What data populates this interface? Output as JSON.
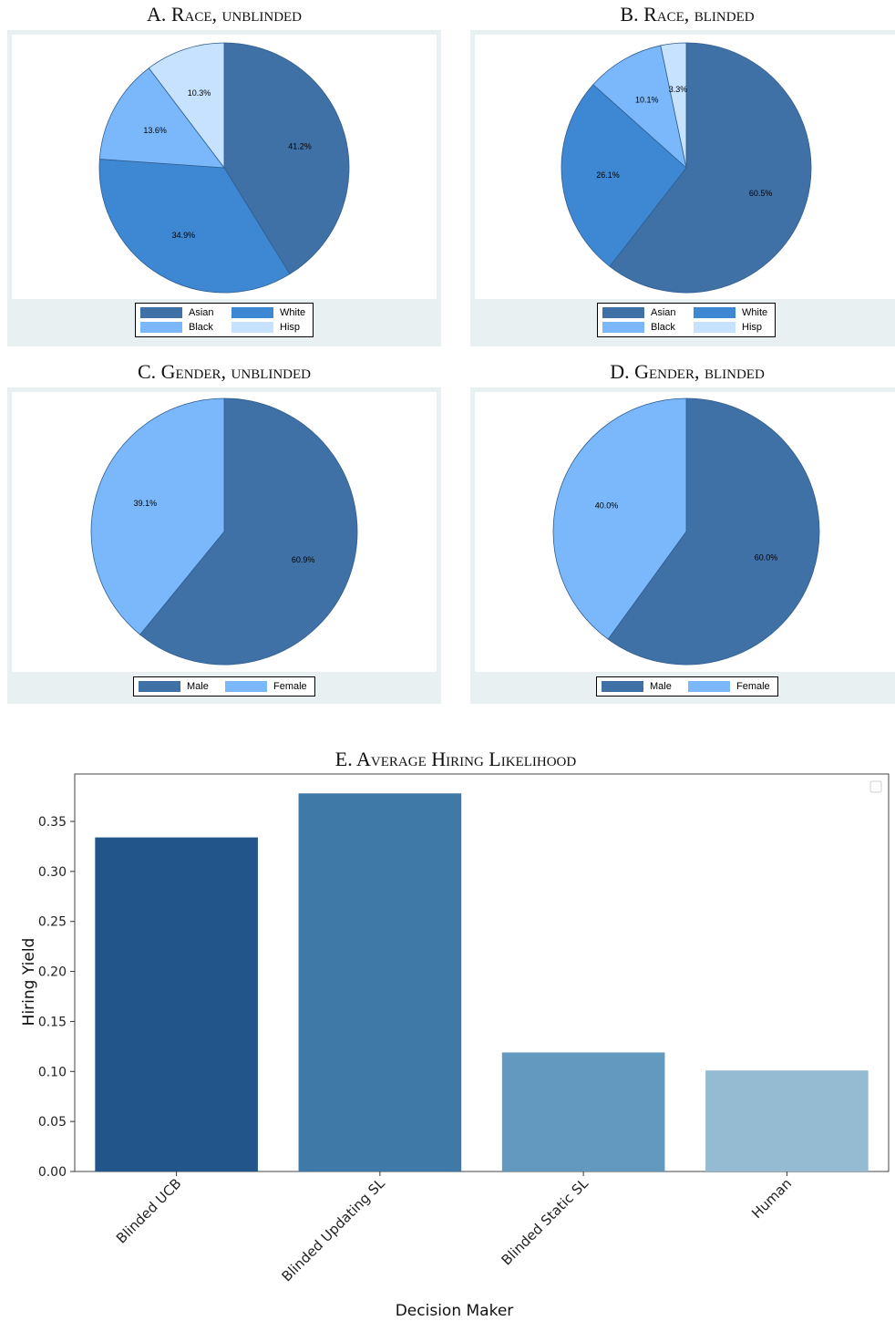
{
  "pies": [
    {
      "title": "A. Race, unblinded",
      "legend": [
        {
          "label": "Asian",
          "color": "#4071a6"
        },
        {
          "label": "White",
          "color": "#3e87d3"
        },
        {
          "label": "Black",
          "color": "#7ab8fb"
        },
        {
          "label": "Hisp",
          "color": "#c7e2fe"
        }
      ],
      "slices": [
        {
          "name": "Asian",
          "pct": "41.2%",
          "value": 41.2,
          "color": "#4071a6"
        },
        {
          "name": "White",
          "pct": "34.9%",
          "value": 34.9,
          "color": "#3e87d3"
        },
        {
          "name": "Black",
          "pct": "13.6%",
          "value": 13.6,
          "color": "#7ab8fb"
        },
        {
          "name": "Hisp",
          "pct": "10.3%",
          "value": 10.3,
          "color": "#c7e2fe"
        }
      ]
    },
    {
      "title": "B. Race, blinded",
      "legend": [
        {
          "label": "Asian",
          "color": "#4071a6"
        },
        {
          "label": "White",
          "color": "#3e87d3"
        },
        {
          "label": "Black",
          "color": "#7ab8fb"
        },
        {
          "label": "Hisp",
          "color": "#c7e2fe"
        }
      ],
      "slices": [
        {
          "name": "Asian",
          "pct": "60.5%",
          "value": 60.5,
          "color": "#4071a6"
        },
        {
          "name": "White",
          "pct": "26.1%",
          "value": 26.1,
          "color": "#3e87d3"
        },
        {
          "name": "Black",
          "pct": "10.1%",
          "value": 10.1,
          "color": "#7ab8fb"
        },
        {
          "name": "Hisp",
          "pct": "3.3%",
          "value": 3.3,
          "color": "#c7e2fe"
        }
      ]
    },
    {
      "title": "C. Gender, unblinded",
      "legend": [
        {
          "label": "Male",
          "color": "#4071a6"
        },
        {
          "label": "Female",
          "color": "#7ab8fb"
        }
      ],
      "slices": [
        {
          "name": "Male",
          "pct": "60.9%",
          "value": 60.9,
          "color": "#4071a6"
        },
        {
          "name": "Female",
          "pct": "39.1%",
          "value": 39.1,
          "color": "#7ab8fb"
        }
      ]
    },
    {
      "title": "D. Gender, blinded",
      "legend": [
        {
          "label": "Male",
          "color": "#4071a6"
        },
        {
          "label": "Female",
          "color": "#7ab8fb"
        }
      ],
      "slices": [
        {
          "name": "Male",
          "pct": "60.0%",
          "value": 60.0,
          "color": "#4071a6"
        },
        {
          "name": "Female",
          "pct": "40.0%",
          "value": 40.0,
          "color": "#7ab8fb"
        }
      ]
    }
  ],
  "chart_data": [
    {
      "type": "pie",
      "title": "A. Race, unblinded",
      "categories": [
        "Asian",
        "White",
        "Black",
        "Hisp"
      ],
      "values": [
        41.2,
        34.9,
        13.6,
        10.3
      ],
      "legend_position": "bottom"
    },
    {
      "type": "pie",
      "title": "B. Race, blinded",
      "categories": [
        "Asian",
        "White",
        "Black",
        "Hisp"
      ],
      "values": [
        60.5,
        26.1,
        10.1,
        3.3
      ],
      "legend_position": "bottom"
    },
    {
      "type": "pie",
      "title": "C. Gender, unblinded",
      "categories": [
        "Male",
        "Female"
      ],
      "values": [
        60.9,
        39.1
      ],
      "legend_position": "bottom"
    },
    {
      "type": "pie",
      "title": "D. Gender, blinded",
      "categories": [
        "Male",
        "Female"
      ],
      "values": [
        60.0,
        40.0
      ],
      "legend_position": "bottom"
    },
    {
      "type": "bar",
      "title": "E. Average Hiring Likelihood",
      "xlabel": "Decision Maker",
      "ylabel": "Hiring Yield",
      "categories": [
        "Blinded UCB",
        "Blinded Updating SL",
        "Blinded Static SL",
        "Human"
      ],
      "values": [
        0.334,
        0.378,
        0.119,
        0.101
      ],
      "colors": [
        "#22558a",
        "#3e79a8",
        "#6399be",
        "#95bbd3"
      ],
      "ylim": [
        0,
        0.4
      ],
      "yticks": [
        "0.00",
        "0.05",
        "0.10",
        "0.15",
        "0.20",
        "0.25",
        "0.30",
        "0.35"
      ],
      "grid": false,
      "legend_position": "top-right"
    }
  ]
}
